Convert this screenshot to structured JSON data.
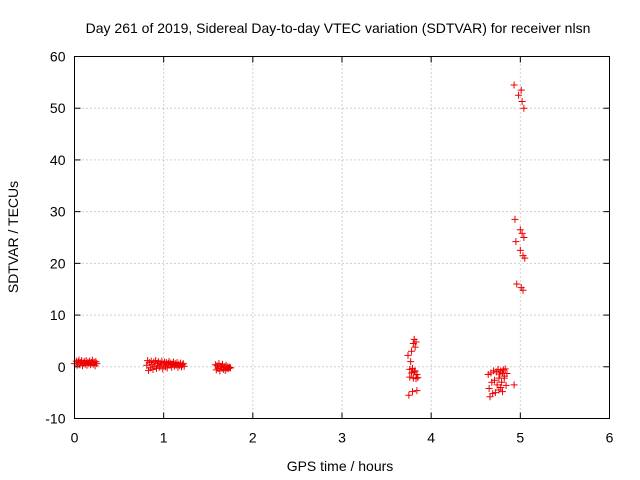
{
  "chart_data": {
    "type": "scatter",
    "title": "Day 261 of 2019, Sidereal Day-to-day VTEC variation (SDTVAR) for receiver nlsn",
    "xlabel": "GPS time / hours",
    "ylabel": "SDTVAR / TECUs",
    "xlim": [
      0,
      6
    ],
    "ylim": [
      -10,
      60
    ],
    "xticks": [
      0,
      1,
      2,
      3,
      4,
      5,
      6
    ],
    "yticks": [
      -10,
      0,
      10,
      20,
      30,
      40,
      50,
      60
    ],
    "grid": true,
    "marker": "+",
    "color": "#ee0000",
    "series": [
      {
        "name": "SDTVAR",
        "points": [
          [
            0.0,
            0.6
          ],
          [
            0.02,
            1.1
          ],
          [
            0.03,
            0.3
          ],
          [
            0.04,
            0.9
          ],
          [
            0.05,
            1.3
          ],
          [
            0.06,
            0.4
          ],
          [
            0.07,
            0.8
          ],
          [
            0.08,
            1.2
          ],
          [
            0.09,
            0.2
          ],
          [
            0.1,
            0.7
          ],
          [
            0.11,
            1.0
          ],
          [
            0.12,
            0.5
          ],
          [
            0.13,
            1.2
          ],
          [
            0.14,
            0.3
          ],
          [
            0.15,
            0.9
          ],
          [
            0.16,
            0.6
          ],
          [
            0.17,
            1.1
          ],
          [
            0.18,
            0.4
          ],
          [
            0.19,
            0.8
          ],
          [
            0.2,
            1.3
          ],
          [
            0.21,
            0.5
          ],
          [
            0.22,
            0.9
          ],
          [
            0.23,
            0.2
          ],
          [
            0.24,
            1.0
          ],
          [
            0.25,
            0.6
          ],
          [
            0.81,
            0.3
          ],
          [
            0.82,
            1.2
          ],
          [
            0.83,
            -0.7
          ],
          [
            0.84,
            0.8
          ],
          [
            0.85,
            -0.2
          ],
          [
            0.86,
            1.1
          ],
          [
            0.87,
            0.4
          ],
          [
            0.88,
            -0.5
          ],
          [
            0.89,
            0.9
          ],
          [
            0.9,
            0.1
          ],
          [
            0.91,
            1.2
          ],
          [
            0.92,
            -0.3
          ],
          [
            0.93,
            0.6
          ],
          [
            0.94,
            1.0
          ],
          [
            0.95,
            -0.1
          ],
          [
            0.96,
            0.7
          ],
          [
            0.97,
            0.2
          ],
          [
            0.98,
            1.1
          ],
          [
            0.99,
            -0.4
          ],
          [
            1.0,
            0.5
          ],
          [
            1.01,
            0.9
          ],
          [
            1.02,
            0.0
          ],
          [
            1.03,
            0.8
          ],
          [
            1.04,
            -0.2
          ],
          [
            1.05,
            0.6
          ],
          [
            1.06,
            1.0
          ],
          [
            1.07,
            0.3
          ],
          [
            1.08,
            0.7
          ],
          [
            1.09,
            -0.1
          ],
          [
            1.1,
            0.5
          ],
          [
            1.11,
            0.9
          ],
          [
            1.12,
            0.1
          ],
          [
            1.13,
            0.6
          ],
          [
            1.14,
            0.3
          ],
          [
            1.15,
            0.8
          ],
          [
            1.16,
            -0.1
          ],
          [
            1.17,
            0.5
          ],
          [
            1.18,
            0.2
          ],
          [
            1.19,
            0.7
          ],
          [
            1.2,
            0.0
          ],
          [
            1.21,
            0.4
          ],
          [
            1.22,
            0.6
          ],
          [
            1.23,
            0.1
          ],
          [
            1.58,
            0.4
          ],
          [
            1.59,
            -0.6
          ],
          [
            1.6,
            0.2
          ],
          [
            1.61,
            -0.3
          ],
          [
            1.62,
            0.6
          ],
          [
            1.63,
            -0.8
          ],
          [
            1.64,
            0.1
          ],
          [
            1.65,
            -0.2
          ],
          [
            1.66,
            0.5
          ],
          [
            1.67,
            -0.5
          ],
          [
            1.68,
            0.0
          ],
          [
            1.69,
            -0.7
          ],
          [
            1.7,
            0.3
          ],
          [
            1.71,
            -0.4
          ],
          [
            1.72,
            0.0
          ],
          [
            1.73,
            -0.3
          ],
          [
            1.74,
            -0.1
          ],
          [
            1.75,
            -0.2
          ],
          [
            3.74,
            2.2
          ],
          [
            3.75,
            -5.5
          ],
          [
            3.76,
            -0.5
          ],
          [
            3.76,
            -2.0
          ],
          [
            3.77,
            1.0
          ],
          [
            3.78,
            -1.2
          ],
          [
            3.78,
            3.0
          ],
          [
            3.79,
            -4.8
          ],
          [
            3.79,
            -0.3
          ],
          [
            3.8,
            -2.2
          ],
          [
            3.8,
            4.5
          ],
          [
            3.81,
            -1.0
          ],
          [
            3.81,
            5.3
          ],
          [
            3.82,
            3.8
          ],
          [
            3.82,
            -0.8
          ],
          [
            3.83,
            -2.3
          ],
          [
            3.83,
            4.8
          ],
          [
            3.84,
            -4.6
          ],
          [
            3.84,
            -1.5
          ],
          [
            3.85,
            -2.1
          ],
          [
            4.64,
            -1.5
          ],
          [
            4.65,
            -4.2
          ],
          [
            4.66,
            -5.8
          ],
          [
            4.67,
            -1.2
          ],
          [
            4.68,
            -3.0
          ],
          [
            4.69,
            -5.2
          ],
          [
            4.7,
            -0.8
          ],
          [
            4.71,
            -2.6
          ],
          [
            4.72,
            -5.0
          ],
          [
            4.73,
            -1.0
          ],
          [
            4.74,
            -3.5
          ],
          [
            4.75,
            -0.5
          ],
          [
            4.76,
            -4.5
          ],
          [
            4.76,
            -2.2
          ],
          [
            4.77,
            -1.4
          ],
          [
            4.78,
            -4.0
          ],
          [
            4.78,
            -0.8
          ],
          [
            4.79,
            -3.0
          ],
          [
            4.8,
            -1.2
          ],
          [
            4.8,
            -4.8
          ],
          [
            4.81,
            -0.6
          ],
          [
            4.82,
            -2.2
          ],
          [
            4.82,
            -1.8
          ],
          [
            4.83,
            -0.4
          ],
          [
            4.84,
            -3.6
          ],
          [
            4.85,
            -1.3
          ],
          [
            4.93,
            -3.5
          ],
          [
            4.93,
            54.5
          ],
          [
            4.94,
            28.5
          ],
          [
            4.95,
            24.2
          ],
          [
            4.96,
            16.0
          ],
          [
            4.98,
            52.5
          ],
          [
            5.0,
            26.5
          ],
          [
            5.0,
            22.5
          ],
          [
            5.01,
            53.5
          ],
          [
            5.01,
            15.3
          ],
          [
            5.02,
            51.3
          ],
          [
            5.02,
            25.8
          ],
          [
            5.03,
            21.5
          ],
          [
            5.03,
            14.8
          ],
          [
            5.04,
            50.0
          ],
          [
            5.04,
            25.0
          ],
          [
            5.05,
            21.0
          ]
        ]
      }
    ]
  }
}
